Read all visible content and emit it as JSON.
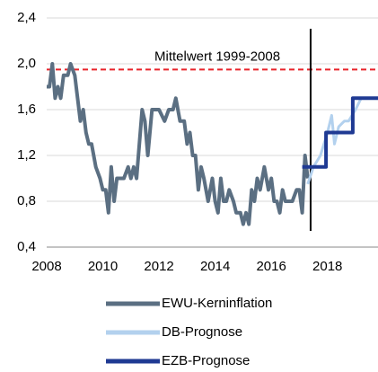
{
  "chart_data": {
    "type": "line",
    "annotation": "Mittelwert 1999-2008",
    "reference_line": {
      "value": 1.95,
      "color": "#e8232a"
    },
    "vline": {
      "value": 2017.4,
      "color": "#000000"
    },
    "xlim": [
      2008,
      2019.8
    ],
    "xticks": [
      2008,
      2010,
      2012,
      2014,
      2016,
      2018
    ],
    "ylim": [
      0.4,
      2.4
    ],
    "yticks": [
      {
        "value": 0.4,
        "label": "0,4"
      },
      {
        "value": 0.8,
        "label": "0,8"
      },
      {
        "value": 1.2,
        "label": "1,2"
      },
      {
        "value": 1.6,
        "label": "1,6"
      },
      {
        "value": 2.0,
        "label": "2,0"
      },
      {
        "value": 2.4,
        "label": "2,4"
      }
    ],
    "grid": true,
    "series": [
      {
        "name": "EWU-Kerninflation",
        "color": "#5b6f82",
        "x": [
          2008.0,
          2008.1,
          2008.2,
          2008.3,
          2008.4,
          2008.5,
          2008.6,
          2008.75,
          2008.85,
          2009.0,
          2009.1,
          2009.2,
          2009.3,
          2009.4,
          2009.5,
          2009.6,
          2009.75,
          2009.9,
          2010.0,
          2010.1,
          2010.2,
          2010.3,
          2010.4,
          2010.5,
          2010.6,
          2010.75,
          2010.9,
          2011.0,
          2011.1,
          2011.2,
          2011.3,
          2011.4,
          2011.5,
          2011.6,
          2011.75,
          2011.9,
          2012.0,
          2012.2,
          2012.35,
          2012.5,
          2012.6,
          2012.75,
          2012.9,
          2013.0,
          2013.1,
          2013.2,
          2013.3,
          2013.4,
          2013.5,
          2013.6,
          2013.75,
          2013.9,
          2014.0,
          2014.1,
          2014.2,
          2014.3,
          2014.4,
          2014.5,
          2014.65,
          2014.75,
          2014.9,
          2015.0,
          2015.1,
          2015.2,
          2015.3,
          2015.4,
          2015.5,
          2015.6,
          2015.75,
          2015.9,
          2016.0,
          2016.1,
          2016.2,
          2016.3,
          2016.4,
          2016.5,
          2016.6,
          2016.75,
          2016.9,
          2017.0,
          2017.1,
          2017.2,
          2017.3
        ],
        "values": [
          1.8,
          1.8,
          2.0,
          1.7,
          1.8,
          1.7,
          1.9,
          1.9,
          2.0,
          1.9,
          1.7,
          1.5,
          1.6,
          1.4,
          1.3,
          1.3,
          1.1,
          1.0,
          0.9,
          0.9,
          0.7,
          1.1,
          0.8,
          1.0,
          1.0,
          1.0,
          1.1,
          1.0,
          1.1,
          1.0,
          1.3,
          1.6,
          1.5,
          1.2,
          1.6,
          1.6,
          1.6,
          1.5,
          1.6,
          1.6,
          1.7,
          1.5,
          1.5,
          1.3,
          1.4,
          1.2,
          1.2,
          0.9,
          1.1,
          1.0,
          0.8,
          1.0,
          0.8,
          0.7,
          1.0,
          0.8,
          0.8,
          0.9,
          0.8,
          0.7,
          0.7,
          0.6,
          0.7,
          0.6,
          0.9,
          0.8,
          1.0,
          0.9,
          1.1,
          0.9,
          1.0,
          0.8,
          0.8,
          0.7,
          0.9,
          0.8,
          0.8,
          0.8,
          0.9,
          0.9,
          0.7,
          1.2,
          1.0
        ]
      },
      {
        "name": "DB-Prognose",
        "color": "#b3d1ee",
        "x": [
          2017.3,
          2017.5,
          2017.75,
          2018.0,
          2018.15,
          2018.25,
          2018.4,
          2018.6,
          2018.75,
          2019.0,
          2019.2
        ],
        "values": [
          0.95,
          1.1,
          1.2,
          1.4,
          1.55,
          1.3,
          1.45,
          1.5,
          1.5,
          1.6,
          1.7
        ]
      },
      {
        "name": "EZB-Prognose",
        "color": "#1f3a93",
        "x": [
          2017.1,
          2017.95,
          2017.95,
          2018.9,
          2018.9,
          2019.8
        ],
        "values": [
          1.1,
          1.1,
          1.4,
          1.4,
          1.7,
          1.7
        ]
      }
    ]
  }
}
